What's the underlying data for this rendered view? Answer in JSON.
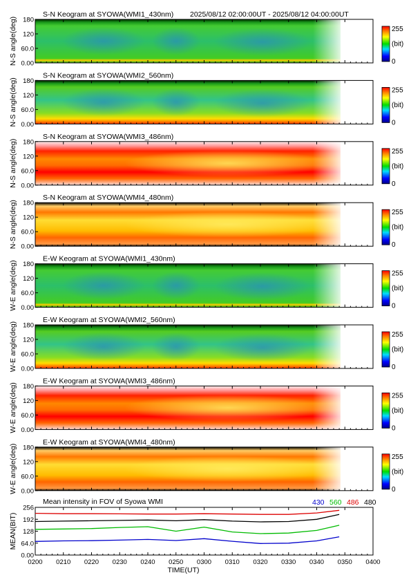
{
  "header": {
    "time_range": "2025/08/12 02:00:00UT - 2025/08/12 04:00:00UT"
  },
  "colors": {
    "c430": "#0000cc",
    "c560": "#00bb00",
    "c486": "#dd0000",
    "c480": "#000000"
  },
  "keograms": [
    {
      "title": "S-N Keogram at SYOWA(WMI1_430nm)",
      "ylabel": "N-S angle(deg)",
      "yticks": [
        "180",
        "120",
        "60.0",
        "0.00"
      ],
      "style": "green"
    },
    {
      "title": "S-N Keogram at SYOWA(WMI2_560nm)",
      "ylabel": "N-S angle(deg)",
      "yticks": [
        "180",
        "120",
        "60.0",
        "0.00"
      ],
      "style": "green2"
    },
    {
      "title": "S-N Keogram at SYOWA(WMI3_486nm)",
      "ylabel": "N-S angle(deg)",
      "yticks": [
        "180",
        "120",
        "60.0",
        "0.00"
      ],
      "style": "red"
    },
    {
      "title": "S-N Keogram at SYOWA(WMI4_480nm)",
      "ylabel": "N-S angle(deg)",
      "yticks": [
        "180",
        "120",
        "60.0",
        "0.00"
      ],
      "style": "yellow"
    },
    {
      "title": "E-W Keogram at SYOWA(WMI1_430nm)",
      "ylabel": "W-E angle(deg)",
      "yticks": [
        "180",
        "120",
        "60.0",
        "0.00"
      ],
      "style": "green"
    },
    {
      "title": "E-W Keogram at SYOWA(WMI2_560nm)",
      "ylabel": "W-E angle(deg)",
      "yticks": [
        "180",
        "120",
        "60.0",
        "0.00"
      ],
      "style": "green2"
    },
    {
      "title": "E-W Keogram at SYOWA(WMI3_486nm)",
      "ylabel": "W-E angle(deg)",
      "yticks": [
        "180",
        "120",
        "60.0",
        "0.00"
      ],
      "style": "red"
    },
    {
      "title": "E-W Keogram at SYOWA(WMI4_480nm)",
      "ylabel": "W-E angle(deg)",
      "yticks": [
        "180",
        "120",
        "60.0",
        "0.00"
      ],
      "style": "yellow"
    }
  ],
  "colorbar": {
    "max_label": "255",
    "unit_label": "(bit)",
    "min_label": "0"
  },
  "chart_data": {
    "type": "line",
    "title": "Mean intensity in FOV of Syowa WMI",
    "xlabel": "TIME(UT)",
    "ylabel": "MEAN(BIT)",
    "xlim": [
      "0200",
      "0400"
    ],
    "ylim": [
      0,
      256
    ],
    "x_ticks": [
      "0200",
      "0210",
      "0220",
      "0230",
      "0240",
      "0250",
      "0300",
      "0310",
      "0320",
      "0330",
      "0340",
      "0350",
      "0400"
    ],
    "y_ticks": [
      "256",
      "192",
      "128",
      "64.0",
      "0.00"
    ],
    "x": [
      "0200",
      "0210",
      "0220",
      "0230",
      "0240",
      "0250",
      "0300",
      "0310",
      "0320",
      "0330",
      "0340",
      "0348"
    ],
    "series": [
      {
        "name": "430",
        "color": "#0000cc",
        "values": [
          73,
          76,
          77,
          80,
          84,
          78,
          88,
          74,
          62,
          64,
          76,
          98
        ]
      },
      {
        "name": "560",
        "color": "#00bb00",
        "values": [
          138,
          140,
          142,
          148,
          152,
          128,
          150,
          124,
          115,
          118,
          132,
          160
        ]
      },
      {
        "name": "486",
        "color": "#dd0000",
        "values": [
          224,
          222,
          222,
          221,
          220,
          220,
          222,
          220,
          218,
          218,
          226,
          240
        ]
      },
      {
        "name": "480",
        "color": "#000000",
        "values": [
          180,
          182,
          184,
          186,
          188,
          184,
          190,
          182,
          178,
          180,
          192,
          218
        ]
      }
    ]
  }
}
